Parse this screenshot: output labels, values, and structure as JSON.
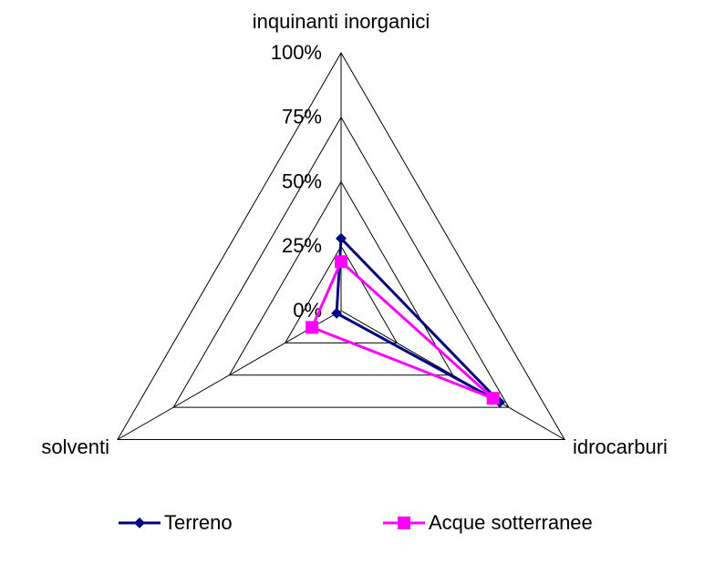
{
  "chart_data": {
    "type": "radar",
    "categories": [
      "inquinanti inorganici",
      "idrocarburi",
      "solventi"
    ],
    "series": [
      {
        "name": "Terreno",
        "color": "#000080",
        "marker": "diamond",
        "values": [
          28,
          71,
          2
        ]
      },
      {
        "name": "Acque sotterranee",
        "color": "#ff00ff",
        "marker": "square",
        "values": [
          19,
          68,
          13
        ]
      }
    ],
    "ylim": [
      0,
      100
    ],
    "yticks": [
      {
        "value": 0,
        "label": "0%"
      },
      {
        "value": 25,
        "label": "25%"
      },
      {
        "value": 50,
        "label": "50%"
      },
      {
        "value": 75,
        "label": "75%"
      },
      {
        "value": 100,
        "label": "100%"
      }
    ],
    "grid": true,
    "legend": "bottom"
  }
}
